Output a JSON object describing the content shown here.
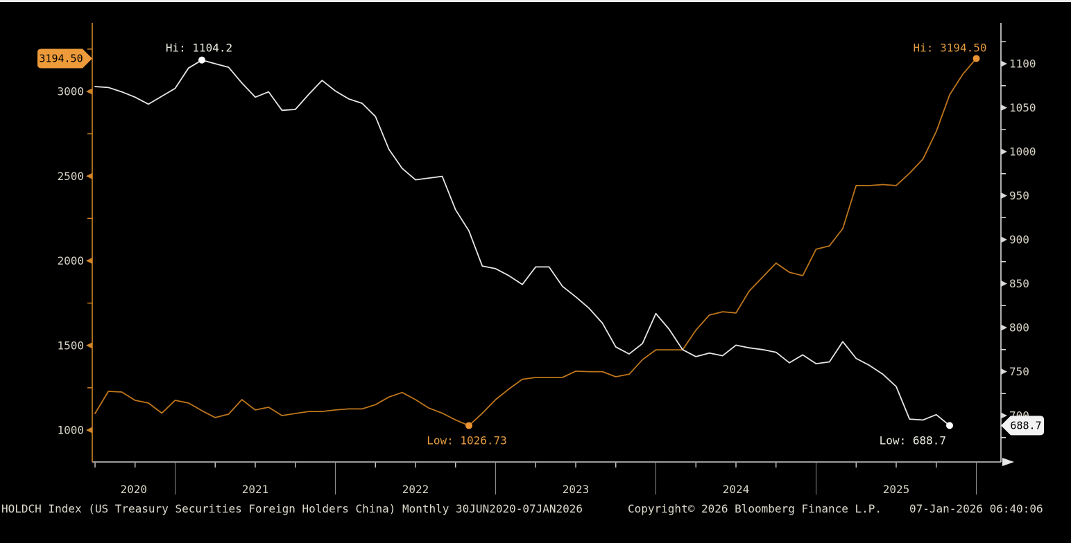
{
  "window": {
    "background": "#000000",
    "top_border_color": "#ececec"
  },
  "chart_data": {
    "type": "line",
    "title": "HOLDCH Index (US Treasury Securities Foreign Holders China)",
    "period": "Monthly 30JUN2020-07JAN2026",
    "grid": "off",
    "x_axis": {
      "start_label": "30JUN2020",
      "end_label": "07JAN2026",
      "interval": "monthly",
      "year_labels": [
        "2020",
        "2021",
        "2022",
        "2023",
        "2024",
        "2025"
      ]
    },
    "left_axis": {
      "side": "left",
      "axis_color": "#cf8526",
      "label_color": "#d8d4c6",
      "major_ticks": [
        1000,
        1500,
        2000,
        2500,
        3000
      ],
      "minor_ticks": [
        1250,
        1750,
        2250,
        2750,
        3250
      ],
      "range_shown": [
        1000,
        3250
      ],
      "current_value_tag": {
        "text": "3194.50",
        "value": 3194.5,
        "bg": "#ed9b3a",
        "text_color": "#000000"
      }
    },
    "right_axis": {
      "side": "right",
      "axis_color": "#d9d9d9",
      "label_color": "#d8d4c6",
      "major_ticks": [
        700,
        750,
        800,
        850,
        900,
        950,
        1000,
        1050,
        1100
      ],
      "minor_ticks": [
        675,
        725,
        775,
        825,
        875,
        925,
        975,
        1025,
        1075,
        1125
      ],
      "range_shown": [
        675,
        1125
      ],
      "current_value_tag": {
        "text": "688.7",
        "value": 688.7,
        "bg": "#f2f2f2",
        "text_color": "#000000"
      }
    },
    "series": [
      {
        "name": "orange-series-left-scale",
        "axis": "left",
        "color": "#bf761c",
        "marker_color": "#ea9433",
        "annotation_color": "#e09a40",
        "start_month": "Jun 2020",
        "hi": {
          "label": "Hi: 3194.50",
          "value": 3194.5,
          "index": 66
        },
        "low": {
          "label": "Low: 1026.73",
          "value": 1026.73,
          "index": 28
        },
        "values": [
          1098,
          1229,
          1225,
          1176,
          1160,
          1100,
          1176,
          1160,
          1115,
          1074,
          1094,
          1180,
          1119,
          1135,
          1086,
          1098,
          1110,
          1110,
          1119,
          1125,
          1125,
          1150,
          1195,
          1222,
          1180,
          1130,
          1100,
          1060,
          1026.73,
          1099,
          1180,
          1243,
          1300,
          1311,
          1311,
          1311,
          1348,
          1345,
          1345,
          1315,
          1330,
          1416,
          1474,
          1474,
          1474,
          1590,
          1679,
          1699,
          1692,
          1822,
          1904,
          1986,
          1932,
          1912,
          2068,
          2088,
          2190,
          2444,
          2444,
          2450,
          2444,
          2517,
          2600,
          2763,
          2980,
          3103,
          3194.5
        ]
      },
      {
        "name": "holdch-series-right-scale",
        "axis": "right",
        "color": "#e6e6e6",
        "marker_color": "#ffffff",
        "annotation_color": "#eceadf",
        "start_month": "Jun 2020",
        "hi": {
          "label": "Hi: 1104.2",
          "value": 1104.2,
          "index": 8
        },
        "low": {
          "label": "Low: 688.7",
          "value": 688.7,
          "index": 64
        },
        "values": [
          1074,
          1073,
          1068,
          1062,
          1054,
          1063,
          1072,
          1095,
          1104.2,
          1100,
          1096,
          1078,
          1062,
          1068,
          1047,
          1048,
          1065,
          1081,
          1069,
          1060,
          1055,
          1040,
          1003,
          981,
          968,
          970,
          972,
          934,
          910,
          870,
          867,
          859,
          849,
          869,
          869,
          847,
          835,
          822,
          805,
          778,
          770,
          782,
          816,
          798,
          775,
          767,
          771,
          768,
          780,
          777,
          775,
          772,
          760,
          769,
          759,
          761,
          784,
          765,
          757,
          747,
          733,
          696,
          695,
          701,
          688.7
        ]
      }
    ]
  },
  "footer": {
    "left": "HOLDCH Index (US Treasury Securities Foreign Holders China) Monthly 30JUN2020-07JAN2026",
    "center": "Copyright© 2026 Bloomberg Finance L.P.",
    "right": "07-Jan-2026 06:40:06"
  }
}
